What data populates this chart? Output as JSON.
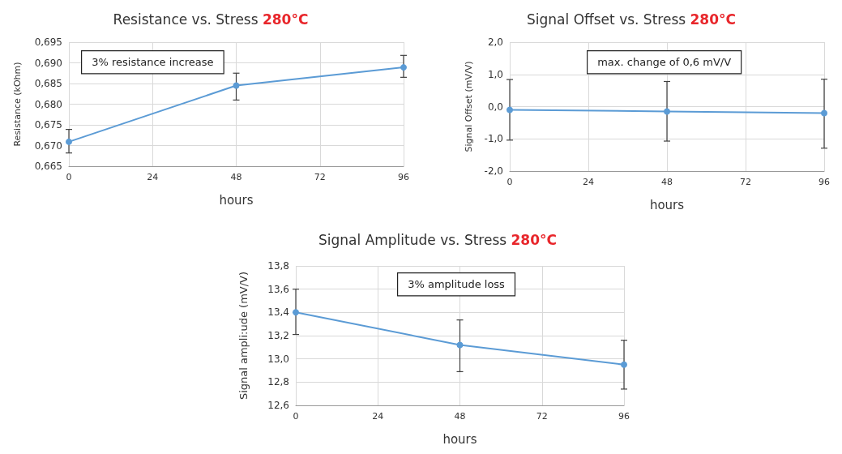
{
  "chart_data": [
    {
      "type": "line",
      "title": "Resistance vs. Stress 280°C",
      "xlabel": "hours",
      "ylabel": "Resistance (kOhm)",
      "annotations": [
        "3% resistance increase"
      ],
      "x": [
        0,
        48,
        96
      ],
      "values": [
        0.6709,
        0.6845,
        0.6889
      ],
      "errors": [
        [
          0.6682,
          0.6739
        ],
        [
          0.681,
          0.6875
        ],
        [
          0.6865,
          0.6918
        ]
      ],
      "color": "#5b9bd5",
      "marker": "circle",
      "grid": true,
      "xlim": [
        0,
        96
      ],
      "xticks": [
        0,
        24,
        48,
        72,
        96
      ],
      "ylim": [
        0.665,
        0.695
      ],
      "yticks": [
        {
          "value": 0.665,
          "label": "0,665"
        },
        {
          "value": 0.67,
          "label": "0,670"
        },
        {
          "value": 0.675,
          "label": "0,675"
        },
        {
          "value": 0.68,
          "label": "0,680"
        },
        {
          "value": 0.685,
          "label": "0,685"
        },
        {
          "value": 0.69,
          "label": "0,690"
        },
        {
          "value": 0.695,
          "label": "0,695"
        }
      ]
    },
    {
      "type": "line",
      "title": "Signal Offset vs. Stress 280°C",
      "xlabel": "hours",
      "ylabel": "Signal Offset (mV/V)",
      "annotations": [
        "max. change of 0,6 mV/V"
      ],
      "x": [
        0,
        48,
        96
      ],
      "values": [
        -0.1,
        -0.15,
        -0.2
      ],
      "errors": [
        [
          -1.04,
          0.84
        ],
        [
          -1.07,
          0.78
        ],
        [
          -1.29,
          0.85
        ]
      ],
      "color": "#5b9bd5",
      "marker": "circle",
      "grid": true,
      "xlim": [
        0,
        96
      ],
      "xticks": [
        0,
        24,
        48,
        72,
        96
      ],
      "ylim": [
        -2,
        2
      ],
      "yticks": [
        {
          "value": -2,
          "label": "-2,0"
        },
        {
          "value": -1,
          "label": "-1,0"
        },
        {
          "value": 0,
          "label": "0,0"
        },
        {
          "value": 1,
          "label": "1,0"
        },
        {
          "value": 2,
          "label": "2,0"
        }
      ]
    },
    {
      "type": "line",
      "title": "Signal Amplitude vs. Stress 280°C",
      "xlabel": "hours",
      "ylabel": "Signal ampli:ude (mV/V)",
      "annotations": [
        "3% amplitude loss"
      ],
      "x": [
        0,
        48,
        96
      ],
      "values": [
        13.4,
        13.12,
        12.95
      ],
      "errors": [
        [
          13.21,
          13.6
        ],
        [
          12.89,
          13.335
        ],
        [
          12.74,
          13.16
        ]
      ],
      "color": "#5b9bd5",
      "marker": "circle",
      "grid": true,
      "xlim": [
        0,
        96
      ],
      "xticks": [
        0,
        24,
        48,
        72,
        96
      ],
      "ylim": [
        12.6,
        13.8
      ],
      "yticks": [
        {
          "value": 12.6,
          "label": "12,6"
        },
        {
          "value": 12.8,
          "label": "12,8"
        },
        {
          "value": 13.0,
          "label": "13,0"
        },
        {
          "value": 13.2,
          "label": "13,2"
        },
        {
          "value": 13.4,
          "label": "13,4"
        },
        {
          "value": 13.6,
          "label": "13,6"
        },
        {
          "value": 13.8,
          "label": "13,8"
        }
      ]
    }
  ]
}
